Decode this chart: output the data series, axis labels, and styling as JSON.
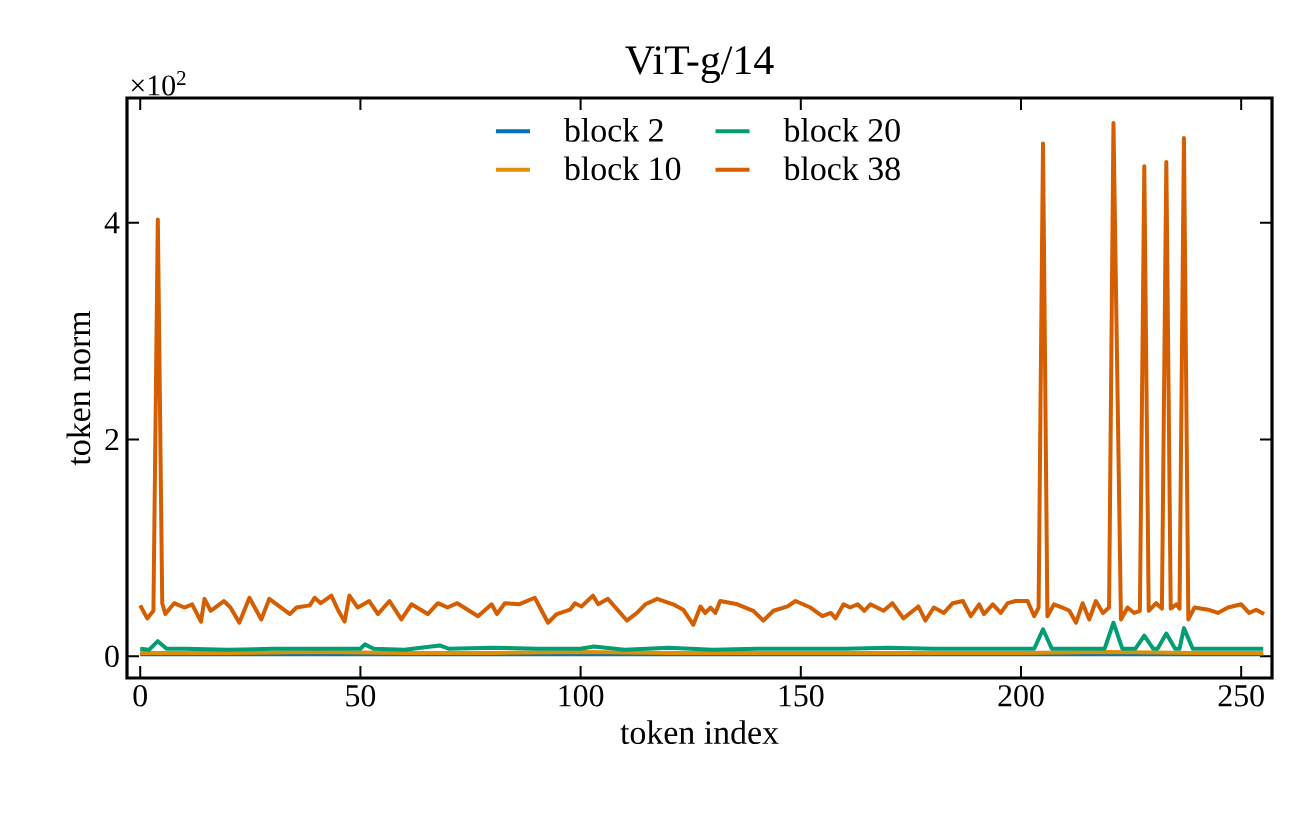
{
  "chart_data": {
    "type": "line",
    "title": "ViT-g/14",
    "xlabel": "token index",
    "ylabel": "token norm",
    "annotations": [
      "×10$^{2}$"
    ],
    "legend": "top",
    "xlim": [
      -3,
      257
    ],
    "ylim": [
      -0.2,
      5.15
    ],
    "xticks": [
      0,
      50,
      100,
      150,
      200,
      250
    ],
    "yticks": [
      0,
      2,
      4
    ],
    "series": [
      {
        "name": "block 2",
        "color": "#0173b2",
        "x": [
          0,
          50,
          100,
          150,
          200,
          255
        ],
        "values": [
          0.02,
          0.02,
          0.02,
          0.02,
          0.02,
          0.02
        ]
      },
      {
        "name": "block 10",
        "color": "#de8f05",
        "x": [
          0,
          20,
          40,
          60,
          80,
          100,
          120,
          140,
          160,
          180,
          200,
          220,
          240,
          255
        ],
        "values": [
          0.03,
          0.03,
          0.04,
          0.03,
          0.03,
          0.04,
          0.03,
          0.03,
          0.03,
          0.03,
          0.03,
          0.04,
          0.03,
          0.03
        ]
      },
      {
        "name": "block 20",
        "color": "#029e73",
        "x": [
          0,
          2,
          4,
          6,
          10,
          20,
          30,
          40,
          50,
          51,
          53,
          60,
          68,
          70,
          80,
          90,
          100,
          103,
          110,
          120,
          130,
          140,
          150,
          160,
          170,
          180,
          190,
          200,
          203,
          205,
          207,
          219,
          221,
          223,
          226,
          228,
          230,
          231,
          233,
          235,
          236,
          237,
          239,
          245,
          255
        ],
        "values": [
          0.07,
          0.06,
          0.14,
          0.07,
          0.07,
          0.06,
          0.07,
          0.07,
          0.07,
          0.11,
          0.07,
          0.06,
          0.1,
          0.07,
          0.08,
          0.07,
          0.07,
          0.09,
          0.06,
          0.08,
          0.06,
          0.07,
          0.07,
          0.07,
          0.08,
          0.07,
          0.07,
          0.07,
          0.07,
          0.25,
          0.07,
          0.07,
          0.31,
          0.07,
          0.07,
          0.19,
          0.07,
          0.07,
          0.21,
          0.07,
          0.07,
          0.26,
          0.07,
          0.07,
          0.07
        ]
      },
      {
        "name": "block 38",
        "color": "#d55e00",
        "x": [
          0,
          1.6,
          3,
          4,
          5,
          5.7,
          7.7,
          10,
          11.8,
          13.8,
          14.6,
          16,
          19,
          20.5,
          22.5,
          24.8,
          27.5,
          29.3,
          31,
          34,
          35.5,
          38.5,
          39.6,
          41,
          43.4,
          45,
          46.4,
          47.5,
          49.4,
          52,
          54,
          56.6,
          59.3,
          61.6,
          65.3,
          67.6,
          69.8,
          72,
          76.7,
          79.8,
          81,
          82.8,
          86,
          89.6,
          92.6,
          94.6,
          97.6,
          98.7,
          100.2,
          102.8,
          104,
          106.2,
          110.5,
          112.8,
          114.7,
          117.4,
          121,
          123.3,
          125.6,
          127.2,
          128.3,
          129.5,
          130.6,
          131.7,
          135.6,
          139.2,
          141.5,
          143.8,
          147,
          148.8,
          152.2,
          154.9,
          156.8,
          157.9,
          159.7,
          161.2,
          162.9,
          164.4,
          165.8,
          168.8,
          170.8,
          173.3,
          176.7,
          178.3,
          180.2,
          182.5,
          184.5,
          186.8,
          188.6,
          190.5,
          191.6,
          193.6,
          195.4,
          197,
          198.8,
          200.4,
          201.5,
          203,
          204,
          205,
          206,
          207.5,
          209.4,
          211,
          212.5,
          214,
          215.5,
          217,
          218.6,
          220,
          221,
          222.7,
          224.2,
          225.7,
          227,
          228,
          229,
          230.7,
          232,
          233,
          234,
          235.3,
          236,
          237,
          238,
          239.4,
          242.5,
          244.7,
          247,
          250,
          251.8,
          253.4,
          255.2
        ],
        "values": [
          0.47,
          0.35,
          0.42,
          4.03,
          0.49,
          0.39,
          0.49,
          0.45,
          0.48,
          0.32,
          0.53,
          0.42,
          0.51,
          0.45,
          0.31,
          0.54,
          0.34,
          0.53,
          0.48,
          0.39,
          0.45,
          0.47,
          0.54,
          0.49,
          0.56,
          0.42,
          0.32,
          0.56,
          0.45,
          0.51,
          0.39,
          0.51,
          0.34,
          0.48,
          0.39,
          0.49,
          0.45,
          0.49,
          0.37,
          0.48,
          0.39,
          0.49,
          0.48,
          0.54,
          0.31,
          0.39,
          0.43,
          0.49,
          0.46,
          0.56,
          0.48,
          0.53,
          0.33,
          0.4,
          0.48,
          0.53,
          0.48,
          0.43,
          0.29,
          0.46,
          0.4,
          0.45,
          0.4,
          0.51,
          0.48,
          0.42,
          0.33,
          0.42,
          0.46,
          0.51,
          0.45,
          0.37,
          0.4,
          0.35,
          0.48,
          0.45,
          0.48,
          0.42,
          0.48,
          0.42,
          0.49,
          0.35,
          0.46,
          0.33,
          0.45,
          0.4,
          0.49,
          0.51,
          0.37,
          0.48,
          0.39,
          0.48,
          0.4,
          0.49,
          0.51,
          0.51,
          0.51,
          0.37,
          0.45,
          4.73,
          0.37,
          0.48,
          0.45,
          0.42,
          0.31,
          0.49,
          0.34,
          0.51,
          0.4,
          0.45,
          4.92,
          0.34,
          0.45,
          0.4,
          0.42,
          4.52,
          0.42,
          0.49,
          0.44,
          4.56,
          0.44,
          0.48,
          0.44,
          4.78,
          0.34,
          0.45,
          0.43,
          0.4,
          0.45,
          0.48,
          0.4,
          0.43,
          0.39
        ]
      }
    ]
  }
}
